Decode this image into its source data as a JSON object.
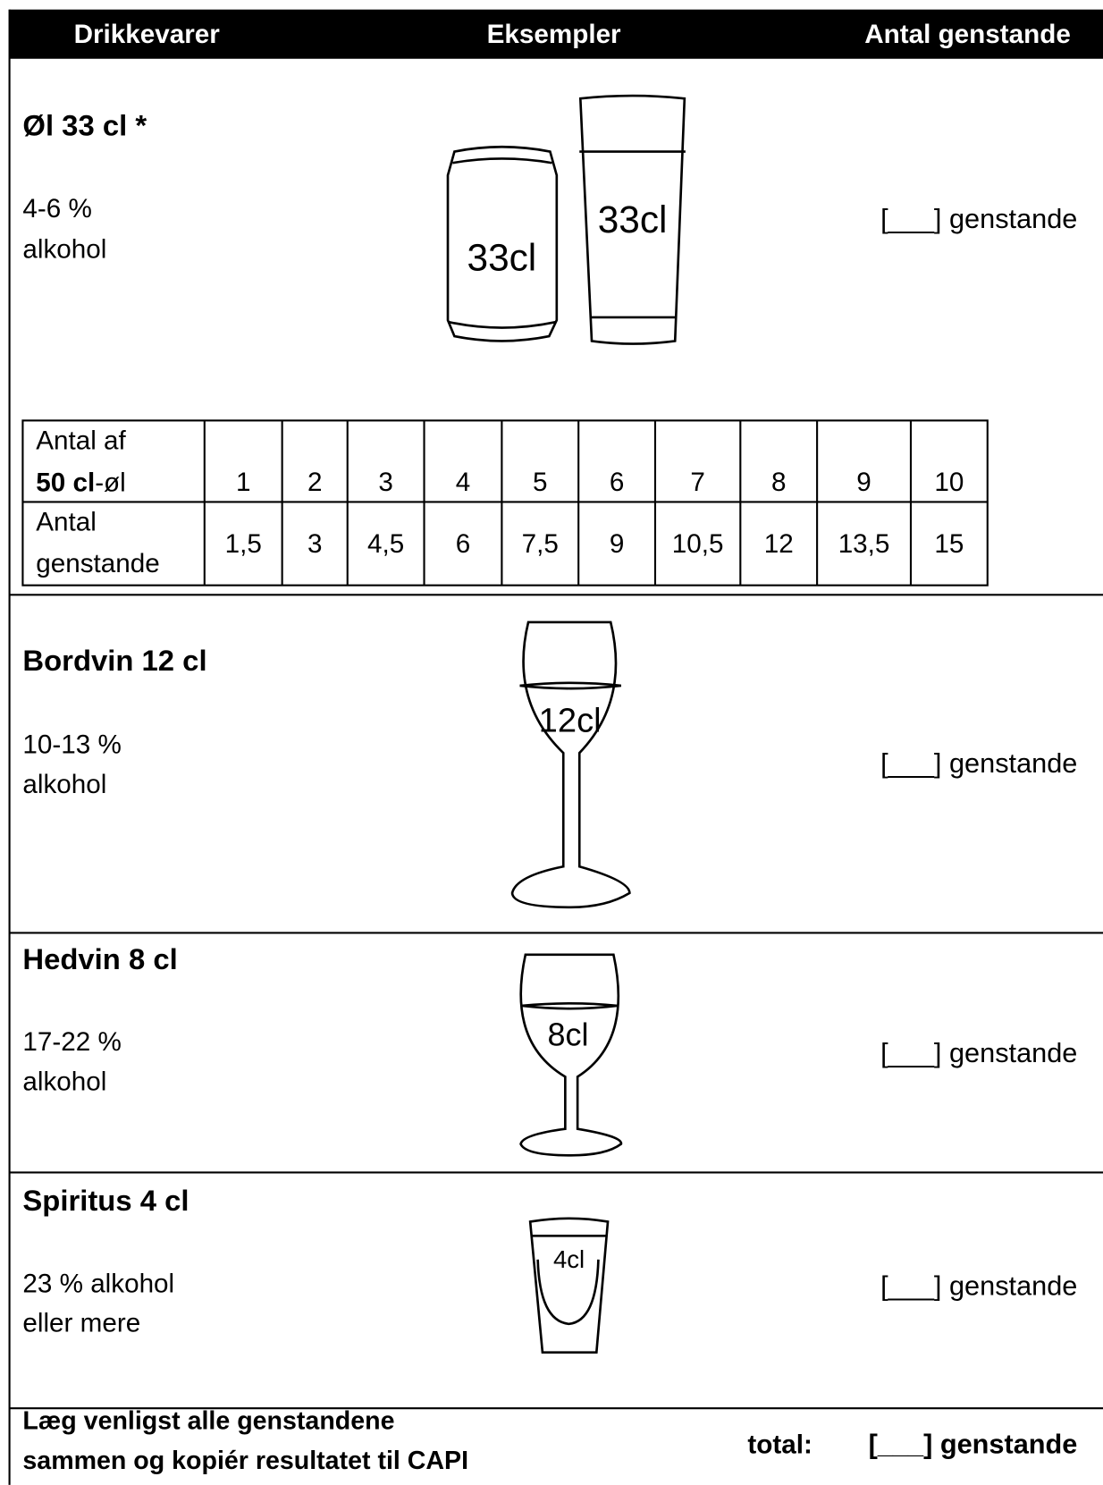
{
  "header": {
    "columns": [
      "Drikkevarer",
      "Eksempler",
      "Antal genstande"
    ]
  },
  "rows": [
    {
      "title": "Øl 33 cl *",
      "description": [
        "4-6 %",
        "alkohol"
      ],
      "examples": [
        "33cl",
        "33cl"
      ],
      "count": "[___] genstande"
    },
    {
      "title": "Bordvin 12 cl",
      "description": [
        "10-13 %",
        "alkohol"
      ],
      "examples": [
        "12cl"
      ],
      "count": "[___] genstande"
    },
    {
      "title": "Hedvin 8 cl",
      "description": [
        "17-22 %",
        "alkohol"
      ],
      "examples": [
        "8cl"
      ],
      "count": "[___] genstande"
    },
    {
      "title": "Spiritus 4 cl",
      "description": [
        "23 % alkohol",
        "eller mere"
      ],
      "examples": [
        "4cl"
      ],
      "count": "[___] genstande"
    }
  ],
  "conversion_table": {
    "row1_label": {
      "line1": "Antal af",
      "bold": "50 cl",
      "rest": "-øl"
    },
    "row1_values": [
      1,
      2,
      3,
      4,
      5,
      6,
      7,
      8,
      9,
      10
    ],
    "row2_label": [
      "Antal",
      "genstande"
    ],
    "row2_values": [
      "1,5",
      "3",
      "4,5",
      "6",
      "7,5",
      "9",
      "10,5",
      "12",
      "13,5",
      "15"
    ]
  },
  "footer": {
    "instruction": [
      "Læg venligst alle genstandene",
      "sammen og kopiér resultatet til CAPI"
    ],
    "total_label": "total:",
    "count": "[___] genstande"
  }
}
